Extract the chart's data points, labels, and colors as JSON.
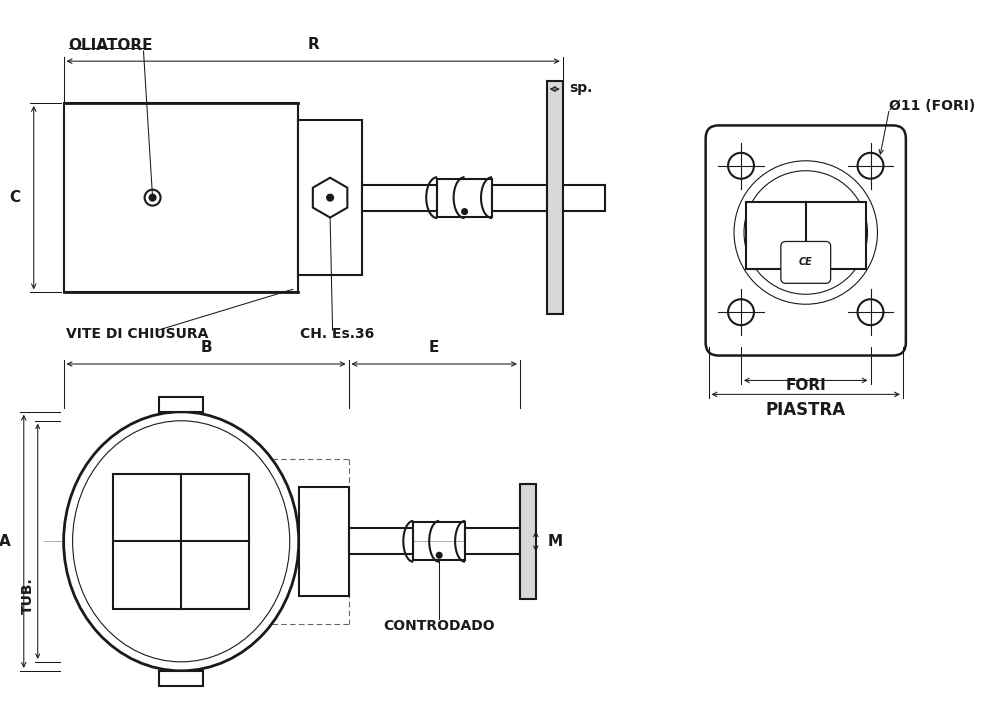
{
  "bg": "#ffffff",
  "lc": "#1a1a1a",
  "dc": "#666666",
  "lw": 1.5,
  "lt": 0.8,
  "ld": 0.75,
  "labels": {
    "oliatore": "OLIATORE",
    "vite": "VITE DI CHIUSURA",
    "ch_es": "CH. Es.36",
    "R": "R",
    "sp": "sp.",
    "C": "C",
    "B": "B",
    "E": "E",
    "A": "A",
    "TUB": "TUB.",
    "M": "M",
    "controdado": "CONTRODADO",
    "phi": "Ø11 (FORI)",
    "fori": "FORI",
    "piastra": "PIASTRA"
  }
}
